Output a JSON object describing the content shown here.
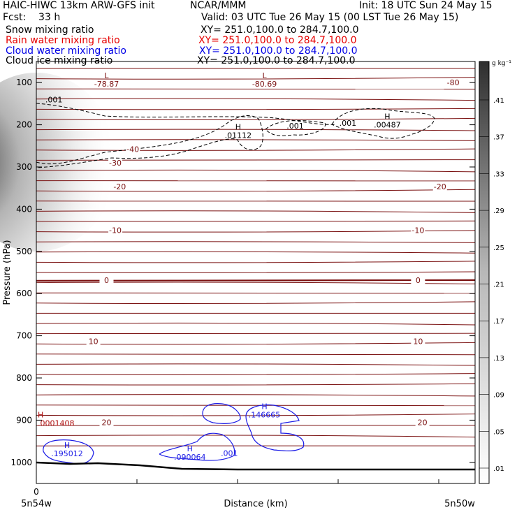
{
  "header": {
    "left_title": "HAIC-HIWC 13km ARW-GFS init",
    "center_title": "NCAR/MMM",
    "init_time": "Init: 18 UTC Sun 24 May 15",
    "forecast": "Fcst:    33 h",
    "valid_time": "Valid: 03 UTC Tue 26 May 15 (00 LST Tue 26 May 15)",
    "fields": [
      {
        "label": "Snow mixing ratio",
        "xy": "XY= 251.0,100.0 to 284.7,100.0",
        "color": "#000000"
      },
      {
        "label": "Rain water mixing ratio",
        "xy": "XY= 251.0,100.0 to 284.7,100.0",
        "color": "#e60000"
      },
      {
        "label": "Cloud water mixing ratio",
        "xy": "XY= 251.0,100.0 to 284.7,100.0",
        "color": "#0000e6"
      },
      {
        "label": "Cloud ice mixing ratio",
        "xy": "XY= 251.0,100.0 to 284.7,100.0",
        "color": "#000000"
      }
    ]
  },
  "colors": {
    "temperature": "#7a1010",
    "rain_label": "#b01010",
    "cloud_water": "#1a1ae6",
    "cloud_ice": "#000000",
    "surface": "#000000"
  },
  "chart_data": {
    "type": "cross-section",
    "ylabel": "Pressure (hPa)",
    "xlabel": "Distance (km)",
    "x_start_label": "5n54w",
    "x_end_label": "5n50w",
    "x_tick_labels": [
      "0"
    ],
    "ylim": [
      1050,
      50
    ],
    "yticks": [
      100,
      200,
      300,
      400,
      500,
      600,
      700,
      800,
      900,
      1000
    ],
    "temperature_contours": [
      {
        "value": "-80",
        "pressure": 100
      },
      {
        "value": "-40",
        "pressure": 258
      },
      {
        "value": "-30",
        "pressure": 290
      },
      {
        "value": "-20",
        "pressure": 346
      },
      {
        "value": "-10",
        "pressure": 450
      },
      {
        "value": "0",
        "pressure": 568
      },
      {
        "value": "10",
        "pressure": 713
      },
      {
        "value": "20",
        "pressure": 905
      }
    ],
    "extrema_labels": [
      {
        "type": "L",
        "value": "-78.87",
        "x": 0.16,
        "pressure": 106
      },
      {
        "type": "L",
        "value": "-80.69",
        "x": 0.52,
        "pressure": 106
      },
      {
        "type": "H",
        "value": ".01112",
        "x": 0.46,
        "pressure": 228
      },
      {
        "type": "H",
        "value": ".00487",
        "x": 0.8,
        "pressure": 203
      },
      {
        "type": "H",
        "value": ".0001408",
        "x": 0.0,
        "pressure": 910
      },
      {
        "type": "H",
        "value": ".195012",
        "x": 0.07,
        "pressure": 982
      },
      {
        "type": "H",
        "value": ".090064",
        "x": 0.35,
        "pressure": 990
      },
      {
        "type": "H",
        "value": ".146665",
        "x": 0.52,
        "pressure": 890
      }
    ],
    "contour_value_labels": [
      {
        "value": ".001",
        "x": 0.04,
        "pressure": 147,
        "field": "cloud_ice"
      },
      {
        "value": ".001",
        "x": 0.59,
        "pressure": 209,
        "field": "cloud_ice"
      },
      {
        "value": ".001",
        "x": 0.71,
        "pressure": 202,
        "field": "cloud_ice"
      },
      {
        "value": ".001",
        "x": 0.44,
        "pressure": 985,
        "field": "cloud_water"
      }
    ],
    "colorbar": {
      "unit": "g kg⁻¹",
      "labels": [
        ".41",
        ".37",
        ".33",
        ".29",
        ".25",
        ".21",
        ".17",
        ".13",
        ".09",
        ".05",
        ".01"
      ]
    }
  }
}
